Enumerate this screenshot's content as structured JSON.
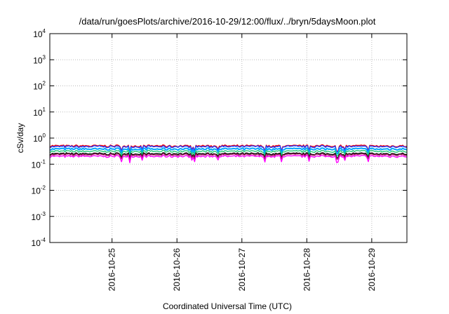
{
  "chart_data": {
    "type": "line",
    "title": "/data/run/goesPlots/archive/2016-10-29/12:00/flux/../bryn/5daysMoon.plot",
    "xlabel": "Coordinated Universal Time (UTC)",
    "ylabel": "cSv/day",
    "yscale": "log",
    "ylim": [
      0.0001,
      10000
    ],
    "y_ticks": [
      {
        "base": "10",
        "exp": "-4",
        "value": 0.0001
      },
      {
        "base": "10",
        "exp": "-3",
        "value": 0.001
      },
      {
        "base": "10",
        "exp": "-2",
        "value": 0.01
      },
      {
        "base": "10",
        "exp": "-1",
        "value": 0.1
      },
      {
        "base": "10",
        "exp": "0",
        "value": 1
      },
      {
        "base": "10",
        "exp": "1",
        "value": 10
      },
      {
        "base": "10",
        "exp": "2",
        "value": 100
      },
      {
        "base": "10",
        "exp": "3",
        "value": 1000
      },
      {
        "base": "10",
        "exp": "4",
        "value": 10000
      }
    ],
    "xlim": [
      "2016-10-24T01:00",
      "2016-10-29T13:00"
    ],
    "x_ticks": [
      "2016-10-25",
      "2016-10-26",
      "2016-10-27",
      "2016-10-28",
      "2016-10-29"
    ],
    "grid": true,
    "series": [
      {
        "color": "#ff0000",
        "level": 0.5,
        "dip": 0.3
      },
      {
        "color": "#1e3cff",
        "level": 0.47,
        "dip": 0.28
      },
      {
        "color": "#00a6ff",
        "level": 0.38,
        "dip": 0.24
      },
      {
        "color": "#1ec878",
        "level": 0.31,
        "dip": 0.2
      },
      {
        "color": "#000000",
        "level": 0.25,
        "dip": 0.17
      },
      {
        "color": "#a01e5a",
        "level": 0.23,
        "dip": 0.15
      },
      {
        "color": "#ff00ff",
        "level": 0.2,
        "dip": 0.11
      }
    ]
  }
}
